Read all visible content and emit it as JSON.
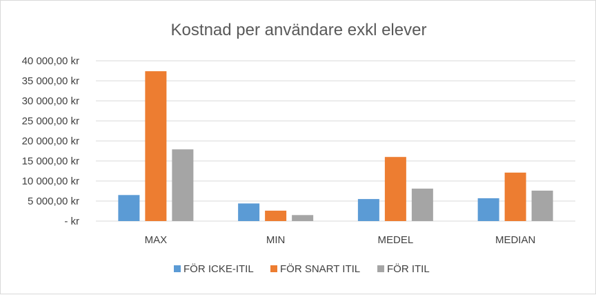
{
  "chart_data": {
    "type": "bar",
    "title": "Kostnad per användare exkl elever",
    "categories": [
      "MAX",
      "MIN",
      "MEDEL",
      "MEDIAN"
    ],
    "series": [
      {
        "name": "FÖR ICKE-ITIL",
        "color": "#5b9bd5",
        "values": [
          6500,
          4400,
          5500,
          5700
        ]
      },
      {
        "name": "FÖR SNART ITIL",
        "color": "#ed7d31",
        "values": [
          37400,
          2600,
          16000,
          12100
        ]
      },
      {
        "name": "FÖR ITIL",
        "color": "#a5a5a5",
        "values": [
          17900,
          1500,
          8100,
          7600
        ]
      }
    ],
    "y_ticks": [
      {
        "value": 0,
        "label": "-   kr"
      },
      {
        "value": 5000,
        "label": "5 000,00 kr"
      },
      {
        "value": 10000,
        "label": "10 000,00 kr"
      },
      {
        "value": 15000,
        "label": "15 000,00 kr"
      },
      {
        "value": 20000,
        "label": "20 000,00 kr"
      },
      {
        "value": 25000,
        "label": "25 000,00 kr"
      },
      {
        "value": 30000,
        "label": "30 000,00 kr"
      },
      {
        "value": 35000,
        "label": "35 000,00 kr"
      },
      {
        "value": 40000,
        "label": "40 000,00 kr"
      }
    ],
    "ylim": [
      0,
      40000
    ],
    "grid": true,
    "legend_position": "bottom"
  }
}
